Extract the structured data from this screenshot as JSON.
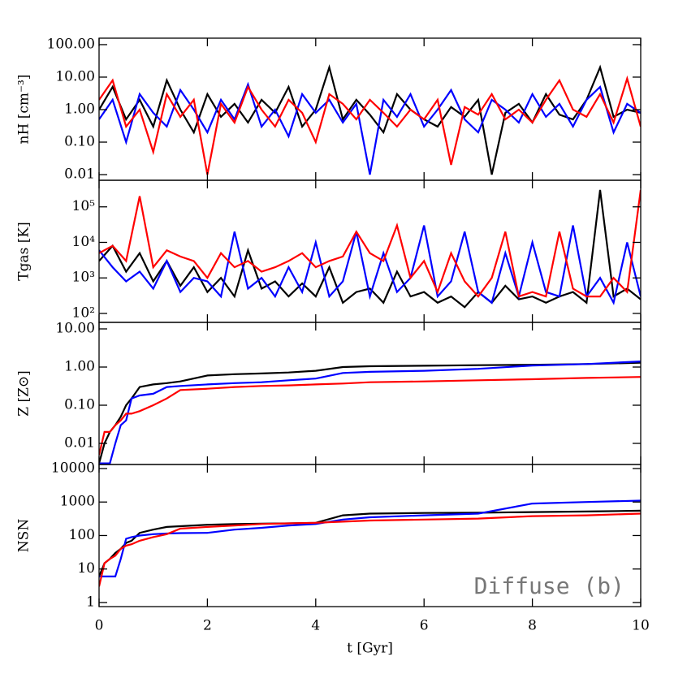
{
  "chart_data": [
    {
      "type": "line",
      "y_label": "nH [cm⁻³]",
      "log_scale": true,
      "xlim": [
        0,
        10
      ],
      "ylim": [
        0.0067,
        158
      ],
      "yticks": [
        {
          "value": 100,
          "label": "100.00"
        },
        {
          "value": 10,
          "label": "10.00"
        },
        {
          "value": 1,
          "label": "1.00"
        },
        {
          "value": 0.1,
          "label": "0.10"
        },
        {
          "value": 0.01,
          "label": "0.01"
        }
      ],
      "x": [
        0,
        0.25,
        0.5,
        0.75,
        1,
        1.25,
        1.5,
        1.75,
        2,
        2.25,
        2.5,
        2.75,
        3,
        3.25,
        3.5,
        3.75,
        4,
        4.25,
        4.5,
        4.75,
        5,
        5.25,
        5.5,
        5.75,
        6,
        6.25,
        6.5,
        6.75,
        7,
        7.25,
        7.5,
        7.75,
        8,
        8.25,
        8.5,
        8.75,
        9,
        9.25,
        9.5,
        9.75,
        10
      ],
      "series": [
        {
          "color": "#000000",
          "values": [
            1,
            5,
            0.5,
            2,
            0.3,
            8,
            1,
            0.2,
            3,
            0.6,
            1.5,
            0.4,
            2,
            0.8,
            5,
            0.3,
            1,
            20,
            0.5,
            2,
            0.7,
            0.2,
            3,
            1,
            0.5,
            0.3,
            1.2,
            0.6,
            2,
            0.01,
            0.8,
            1.5,
            0.4,
            3,
            0.7,
            0.5,
            2,
            20,
            0.6,
            1,
            0.8
          ]
        },
        {
          "color": "#0000ff",
          "values": [
            0.5,
            2,
            0.1,
            3,
            0.8,
            0.3,
            4,
            1,
            0.2,
            2,
            0.5,
            6,
            0.3,
            1,
            0.15,
            3,
            0.8,
            2,
            0.4,
            1.5,
            0.01,
            2,
            0.6,
            3,
            0.3,
            1,
            4,
            0.5,
            0.2,
            2,
            1,
            0.4,
            3,
            0.6,
            1.5,
            0.3,
            2,
            5,
            0.2,
            1.5,
            0.8
          ]
        },
        {
          "color": "#ff0000",
          "values": [
            2,
            8,
            0.3,
            1,
            0.05,
            3,
            0.6,
            2,
            0.01,
            1.5,
            0.4,
            5,
            1,
            0.3,
            2,
            0.8,
            0.1,
            3,
            1.5,
            0.5,
            2,
            0.8,
            0.3,
            1,
            0.5,
            2,
            0.02,
            1.2,
            0.7,
            3,
            0.5,
            1,
            0.4,
            2,
            8,
            1,
            0.6,
            3,
            0.4,
            9,
            0.3
          ]
        }
      ]
    },
    {
      "type": "line",
      "y_label": "Tgas [K]",
      "log_scale": true,
      "xlim": [
        0,
        10
      ],
      "ylim": [
        56,
        560000
      ],
      "yticks": [
        {
          "value": 100,
          "label": "10²"
        },
        {
          "value": 1000,
          "label": "10³"
        },
        {
          "value": 10000,
          "label": "10⁴"
        },
        {
          "value": 100000,
          "label": "10⁵"
        }
      ],
      "x": [
        0,
        0.25,
        0.5,
        0.75,
        1,
        1.25,
        1.5,
        1.75,
        2,
        2.25,
        2.5,
        2.75,
        3,
        3.25,
        3.5,
        3.75,
        4,
        4.25,
        4.5,
        4.75,
        5,
        5.25,
        5.5,
        5.75,
        6,
        6.25,
        6.5,
        6.75,
        7,
        7.25,
        7.5,
        7.75,
        8,
        8.25,
        8.5,
        8.75,
        9,
        9.25,
        9.5,
        9.75,
        10
      ],
      "series": [
        {
          "color": "#000000",
          "values": [
            3000,
            8000,
            1500,
            5000,
            800,
            3000,
            600,
            2000,
            400,
            1000,
            300,
            6000,
            500,
            800,
            300,
            700,
            300,
            2000,
            200,
            400,
            500,
            200,
            1500,
            300,
            400,
            200,
            300,
            150,
            400,
            200,
            600,
            250,
            300,
            200,
            300,
            400,
            200,
            300000,
            300,
            500,
            250
          ]
        },
        {
          "color": "#0000ff",
          "values": [
            6000,
            2000,
            800,
            1500,
            500,
            3000,
            400,
            1000,
            800,
            300,
            20000,
            500,
            1000,
            300,
            2000,
            400,
            10000,
            300,
            800,
            20000,
            300,
            5000,
            400,
            1000,
            30000,
            300,
            800,
            20000,
            400,
            200,
            5000,
            300,
            10000,
            400,
            300,
            30000,
            300,
            1000,
            200,
            10000,
            300
          ]
        },
        {
          "color": "#ff0000",
          "values": [
            5000,
            8000,
            3000,
            200000,
            2000,
            6000,
            4000,
            3000,
            1000,
            5000,
            2000,
            3000,
            1500,
            2000,
            3000,
            5000,
            2000,
            3000,
            4000,
            20000,
            5000,
            3000,
            30000,
            1000,
            3000,
            400,
            5000,
            800,
            300,
            1000,
            20000,
            300,
            400,
            300,
            20000,
            500,
            300,
            300,
            1000,
            400,
            300000
          ]
        }
      ]
    },
    {
      "type": "line",
      "y_label": "Z [Z⊙]",
      "log_scale": true,
      "xlim": [
        0,
        10
      ],
      "ylim": [
        0.0028,
        14.8
      ],
      "yticks": [
        {
          "value": 10,
          "label": "10.00"
        },
        {
          "value": 1,
          "label": "1.00"
        },
        {
          "value": 0.1,
          "label": "0.10"
        },
        {
          "value": 0.01,
          "label": "0.01"
        }
      ],
      "x": [
        0,
        0.1,
        0.2,
        0.3,
        0.4,
        0.5,
        0.6,
        0.75,
        1,
        1.25,
        1.5,
        2,
        2.5,
        3,
        3.5,
        4,
        4.5,
        5,
        6,
        7,
        8,
        9,
        10
      ],
      "series": [
        {
          "color": "#000000",
          "values": [
            0.003,
            0.01,
            0.02,
            0.03,
            0.05,
            0.1,
            0.15,
            0.3,
            0.35,
            0.38,
            0.42,
            0.6,
            0.65,
            0.68,
            0.72,
            0.8,
            1.0,
            1.05,
            1.08,
            1.12,
            1.15,
            1.2,
            1.3
          ]
        },
        {
          "color": "#0000ff",
          "values": [
            0.003,
            0.003,
            0.003,
            0.01,
            0.03,
            0.04,
            0.15,
            0.18,
            0.2,
            0.3,
            0.32,
            0.35,
            0.38,
            0.4,
            0.45,
            0.5,
            0.7,
            0.75,
            0.8,
            0.9,
            1.1,
            1.2,
            1.4
          ]
        },
        {
          "color": "#ff0000",
          "values": [
            0.005,
            0.02,
            0.02,
            0.03,
            0.04,
            0.06,
            0.06,
            0.07,
            0.1,
            0.15,
            0.25,
            0.27,
            0.3,
            0.32,
            0.33,
            0.35,
            0.37,
            0.4,
            0.42,
            0.45,
            0.48,
            0.52,
            0.55
          ]
        }
      ]
    },
    {
      "type": "line",
      "y_label": "NSN",
      "log_scale": true,
      "xlim": [
        0,
        10
      ],
      "ylim": [
        0.755,
        13200
      ],
      "yticks": [
        10000,
        1000,
        100,
        10,
        1
      ],
      "xticks": [
        0,
        2,
        4,
        6,
        8,
        10
      ],
      "x_label": "t [Gyr]",
      "annotation": "Diffuse (b)",
      "x": [
        0,
        0.1,
        0.2,
        0.3,
        0.4,
        0.5,
        0.6,
        0.75,
        1,
        1.25,
        1.5,
        2,
        2.5,
        3,
        3.5,
        4,
        4.5,
        5,
        6,
        7,
        8,
        9,
        10
      ],
      "series": [
        {
          "color": "#000000",
          "values": [
            6,
            15,
            20,
            30,
            40,
            60,
            70,
            120,
            150,
            180,
            190,
            210,
            220,
            225,
            230,
            240,
            400,
            450,
            470,
            480,
            500,
            520,
            550
          ]
        },
        {
          "color": "#0000ff",
          "values": [
            6,
            6,
            6,
            6,
            20,
            80,
            90,
            100,
            110,
            115,
            118,
            120,
            150,
            170,
            200,
            220,
            300,
            350,
            400,
            450,
            900,
            1000,
            1100
          ]
        },
        {
          "color": "#ff0000",
          "values": [
            3,
            15,
            20,
            25,
            40,
            50,
            55,
            70,
            90,
            110,
            160,
            180,
            200,
            220,
            230,
            240,
            260,
            280,
            300,
            320,
            380,
            400,
            450
          ]
        }
      ]
    }
  ]
}
